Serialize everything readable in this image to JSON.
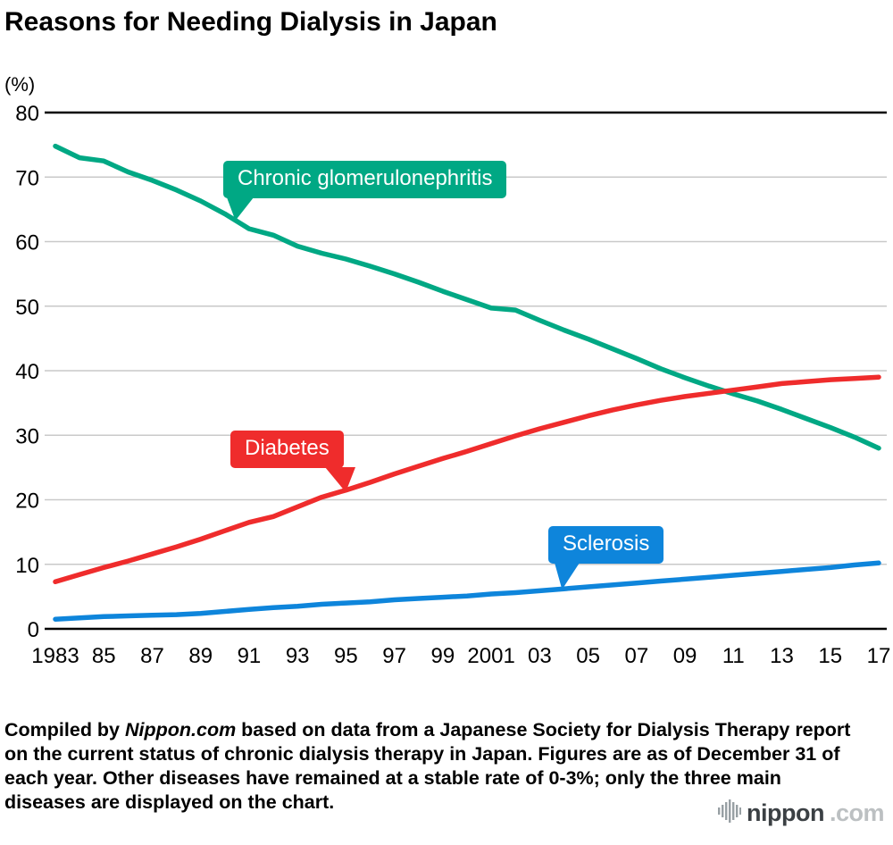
{
  "title": "Reasons for Needing Dialysis in Japan",
  "chart": {
    "unit_label": "(%)"
  },
  "chart_data": {
    "type": "line",
    "title": "Reasons for Needing Dialysis in Japan",
    "ylabel": "(%)",
    "ylim": [
      0,
      80
    ],
    "y_ticks": [
      0,
      10,
      20,
      30,
      40,
      50,
      60,
      70,
      80
    ],
    "x_start_year": 1983,
    "x_end_year": 2017,
    "x_tick_step": 2,
    "x_tick_labels": [
      "1983",
      "85",
      "87",
      "89",
      "91",
      "93",
      "95",
      "97",
      "99",
      "2001",
      "03",
      "05",
      "07",
      "09",
      "11",
      "13",
      "15",
      "17"
    ],
    "grid": true,
    "legend_position": "inline-callouts",
    "series": [
      {
        "name": "Chronic glomerulonephritis",
        "color": "#00A884",
        "values": [
          74.8,
          73.0,
          72.5,
          70.8,
          69.5,
          68.0,
          66.3,
          64.3,
          62.0,
          61.0,
          59.3,
          58.2,
          57.3,
          56.2,
          55.0,
          53.7,
          52.3,
          51.0,
          49.7,
          49.4,
          47.8,
          46.3,
          44.9,
          43.4,
          41.9,
          40.3,
          38.9,
          37.6,
          36.4,
          35.3,
          34.0,
          32.6,
          31.2,
          29.7,
          28.0
        ]
      },
      {
        "name": "Diabetes",
        "color": "#EF2C2C",
        "values": [
          7.3,
          8.4,
          9.5,
          10.5,
          11.6,
          12.7,
          13.9,
          15.2,
          16.5,
          17.4,
          18.9,
          20.4,
          21.5,
          22.7,
          24.0,
          25.2,
          26.4,
          27.5,
          28.7,
          29.9,
          31.0,
          32.0,
          33.0,
          33.9,
          34.7,
          35.4,
          36.0,
          36.5,
          37.0,
          37.5,
          38.0,
          38.3,
          38.6,
          38.8,
          39.0
        ]
      },
      {
        "name": "Sclerosis",
        "color": "#0E85DB",
        "values": [
          1.5,
          1.7,
          1.9,
          2.0,
          2.1,
          2.2,
          2.4,
          2.7,
          3.0,
          3.3,
          3.5,
          3.8,
          4.0,
          4.2,
          4.5,
          4.7,
          4.9,
          5.1,
          5.4,
          5.6,
          5.9,
          6.2,
          6.5,
          6.8,
          7.1,
          7.4,
          7.7,
          8.0,
          8.3,
          8.6,
          8.9,
          9.2,
          9.5,
          9.9,
          10.2
        ]
      }
    ]
  },
  "caption": {
    "part1": "Compiled by ",
    "source": "Nippon.com",
    "part2": " based on data from a Japanese Society for Dialysis Therapy report on the current status of chronic dialysis therapy in Japan. Figures are as of December 31 of each year. Other diseases have remained at a stable rate of 0-3%; only the three main diseases are displayed on the chart."
  },
  "logo": {
    "brand": "nippon",
    "tld": ".com"
  }
}
